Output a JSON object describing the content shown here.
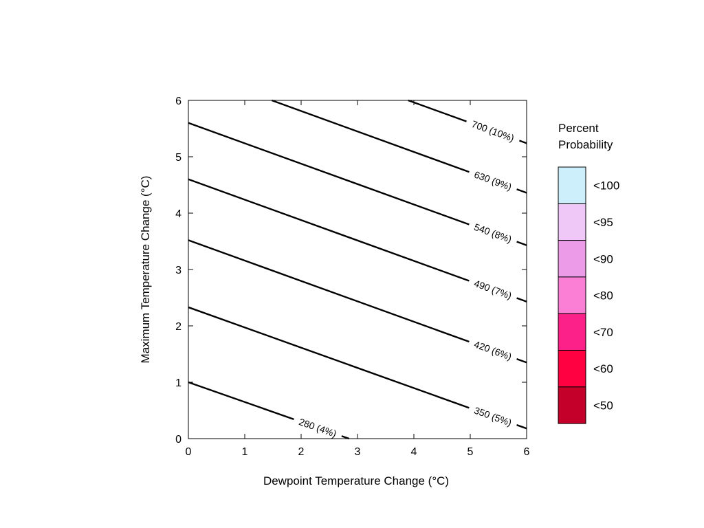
{
  "chart_data": {
    "type": "contour",
    "title": "",
    "xlabel": "Dewpoint Temperature Change (°C)",
    "ylabel": "Maximum Temperature Change (°C)",
    "xlim": [
      0,
      6
    ],
    "ylim": [
      0,
      6
    ],
    "xticks": [
      "0",
      "1",
      "2",
      "3",
      "4",
      "5",
      "6"
    ],
    "yticks": [
      "0",
      "1",
      "2",
      "3",
      "4",
      "5",
      "6"
    ],
    "grid": false,
    "contours": [
      {
        "label": "280 (4%)",
        "points": [
          [
            0,
            1.0
          ],
          [
            2.85,
            0.0
          ]
        ],
        "label_at": [
          2.3,
          0.21
        ]
      },
      {
        "label": "350 (5%)",
        "points": [
          [
            0,
            2.33
          ],
          [
            6,
            0.18
          ]
        ],
        "label_at": [
          5.4,
          0.39
        ]
      },
      {
        "label": "420 (6%)",
        "points": [
          [
            0,
            3.52
          ],
          [
            6,
            1.35
          ]
        ],
        "label_at": [
          5.4,
          1.56
        ]
      },
      {
        "label": "490 (7%)",
        "points": [
          [
            0,
            4.6
          ],
          [
            6,
            2.43
          ]
        ],
        "label_at": [
          5.4,
          2.64
        ]
      },
      {
        "label": "540 (8%)",
        "points": [
          [
            0,
            5.6
          ],
          [
            6,
            3.43
          ]
        ],
        "label_at": [
          5.4,
          3.64
        ]
      },
      {
        "label": "630 (9%)",
        "points": [
          [
            1.48,
            6.0
          ],
          [
            6,
            4.36
          ]
        ],
        "label_at": [
          5.4,
          4.57
        ]
      },
      {
        "label": "700 (10%)",
        "points": [
          [
            3.9,
            6.0
          ],
          [
            6,
            5.24
          ]
        ],
        "label_at": [
          5.4,
          5.45
        ]
      }
    ],
    "legend": {
      "position": "right",
      "title": [
        "Percent",
        "Probability"
      ],
      "entries": [
        {
          "label": "<100",
          "color": "#cdeffb"
        },
        {
          "label": "<95",
          "color": "#f0c8f8"
        },
        {
          "label": "<90",
          "color": "#eb9be8"
        },
        {
          "label": "<80",
          "color": "#fb7fd5"
        },
        {
          "label": "<70",
          "color": "#fc2188"
        },
        {
          "label": "<60",
          "color": "#ff0040"
        },
        {
          "label": "<50",
          "color": "#c4002a"
        }
      ]
    }
  }
}
